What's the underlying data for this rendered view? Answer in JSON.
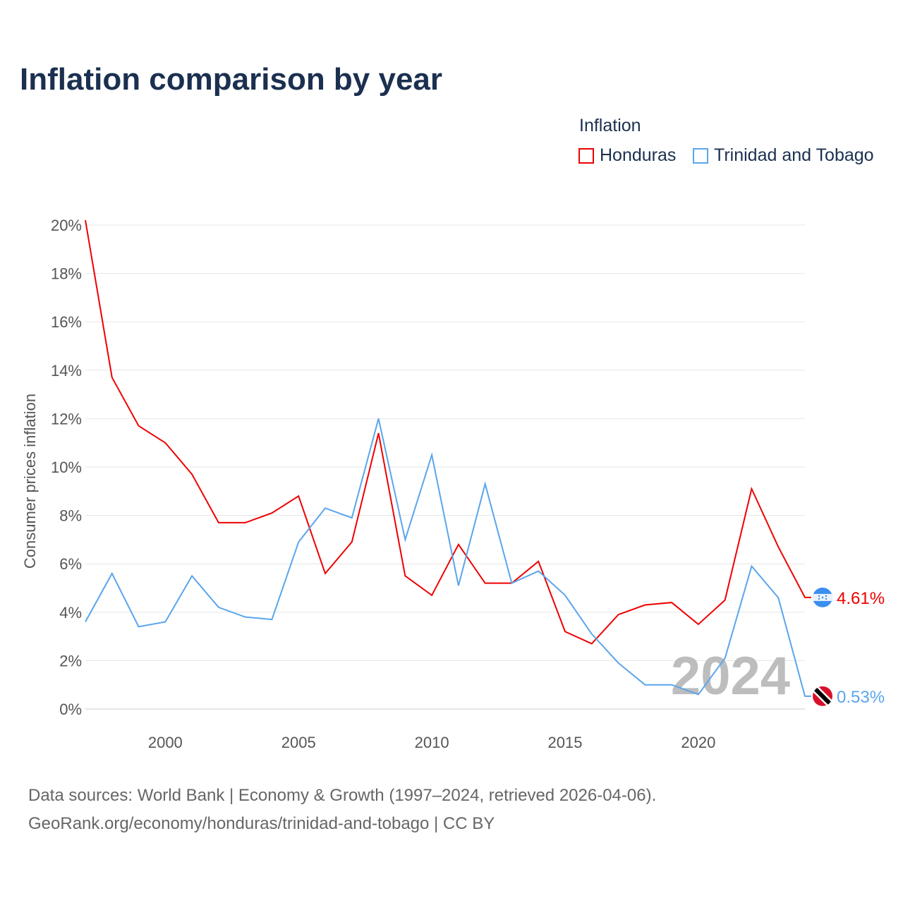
{
  "title": "Inflation comparison by year",
  "legend": {
    "title": "Inflation"
  },
  "source": {
    "line1": "Data sources: World Bank | Economy & Growth (1997–2024, retrieved 2026-04-06).",
    "line2": "GeoRank.org/economy/honduras/trinidad-and-tobago | CC BY"
  },
  "chart_data": {
    "type": "line",
    "title": "Inflation comparison by year",
    "xlabel": "",
    "ylabel": "Consumer prices inflation",
    "xlim": [
      1997,
      2024
    ],
    "ylim": [
      0,
      20
    ],
    "x_ticks": [
      2000,
      2005,
      2010,
      2015,
      2020
    ],
    "y_ticks": [
      "0%",
      "2%",
      "4%",
      "6%",
      "8%",
      "10%",
      "12%",
      "14%",
      "16%",
      "18%",
      "20%"
    ],
    "grid": true,
    "legend_placement": "top-right",
    "watermark_year": "2024",
    "x": [
      1997,
      1998,
      1999,
      2000,
      2001,
      2002,
      2003,
      2004,
      2005,
      2006,
      2007,
      2008,
      2009,
      2010,
      2011,
      2012,
      2013,
      2014,
      2015,
      2016,
      2017,
      2018,
      2019,
      2020,
      2021,
      2022,
      2023,
      2024
    ],
    "series": [
      {
        "name": "Honduras",
        "color": "#ee0000",
        "flag": "honduras-flag",
        "end_label": "4.61%",
        "values": [
          20.2,
          13.7,
          11.7,
          11.0,
          9.7,
          7.7,
          7.7,
          8.1,
          8.8,
          5.6,
          6.9,
          11.4,
          5.5,
          4.7,
          6.8,
          5.2,
          5.2,
          6.1,
          3.2,
          2.7,
          3.9,
          4.3,
          4.4,
          3.5,
          4.5,
          9.1,
          6.7,
          4.61
        ]
      },
      {
        "name": "Trinidad and Tobago",
        "color": "#5aa5ec",
        "flag": "trinidad-flag",
        "end_label": "0.53%",
        "values": [
          3.6,
          5.6,
          3.4,
          3.6,
          5.5,
          4.2,
          3.8,
          3.7,
          6.9,
          8.3,
          7.9,
          12.0,
          7.0,
          10.5,
          5.1,
          9.3,
          5.2,
          5.7,
          4.7,
          3.1,
          1.9,
          1.0,
          1.0,
          0.6,
          2.1,
          5.9,
          4.6,
          0.53
        ]
      }
    ]
  }
}
